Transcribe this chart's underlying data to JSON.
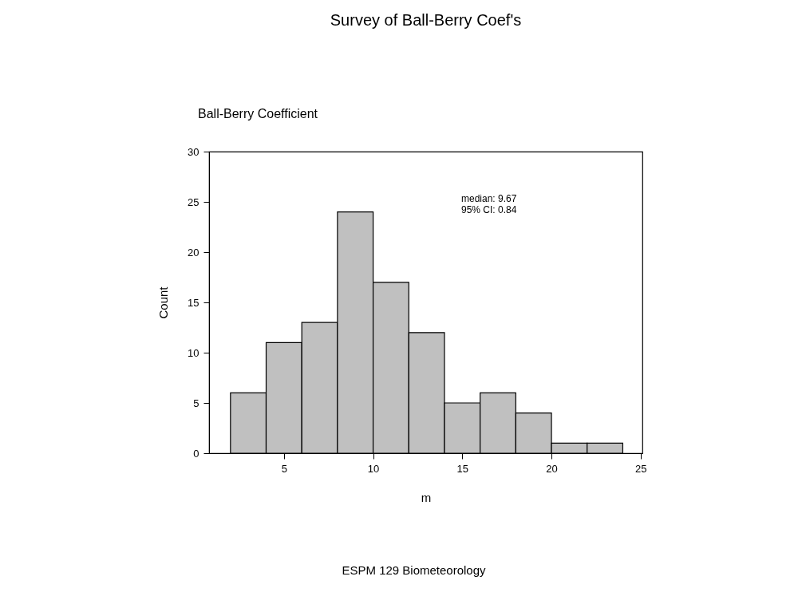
{
  "chart_data": {
    "type": "histogram",
    "title": "Survey of Ball-Berry Coef's",
    "subtitle": "Ball-Berry Coefficient",
    "xlabel": "m",
    "ylabel": "Count",
    "bins": [
      2,
      4,
      6,
      8,
      10,
      12,
      14,
      16,
      18,
      20,
      22,
      24
    ],
    "values": [
      6,
      11,
      13,
      24,
      17,
      12,
      5,
      6,
      4,
      1,
      1
    ],
    "color": "#c0c0c0",
    "xlim": [
      0.8,
      25.1
    ],
    "xticks": [
      5,
      10,
      15,
      20,
      25
    ],
    "ylim": [
      0,
      30
    ],
    "yticks": [
      0,
      5,
      10,
      15,
      20,
      25,
      30
    ],
    "grid": false,
    "annotations": [
      "median: 9.67\n95% CI: 0.84",
      "ESPM 129 Biometeorology"
    ]
  }
}
